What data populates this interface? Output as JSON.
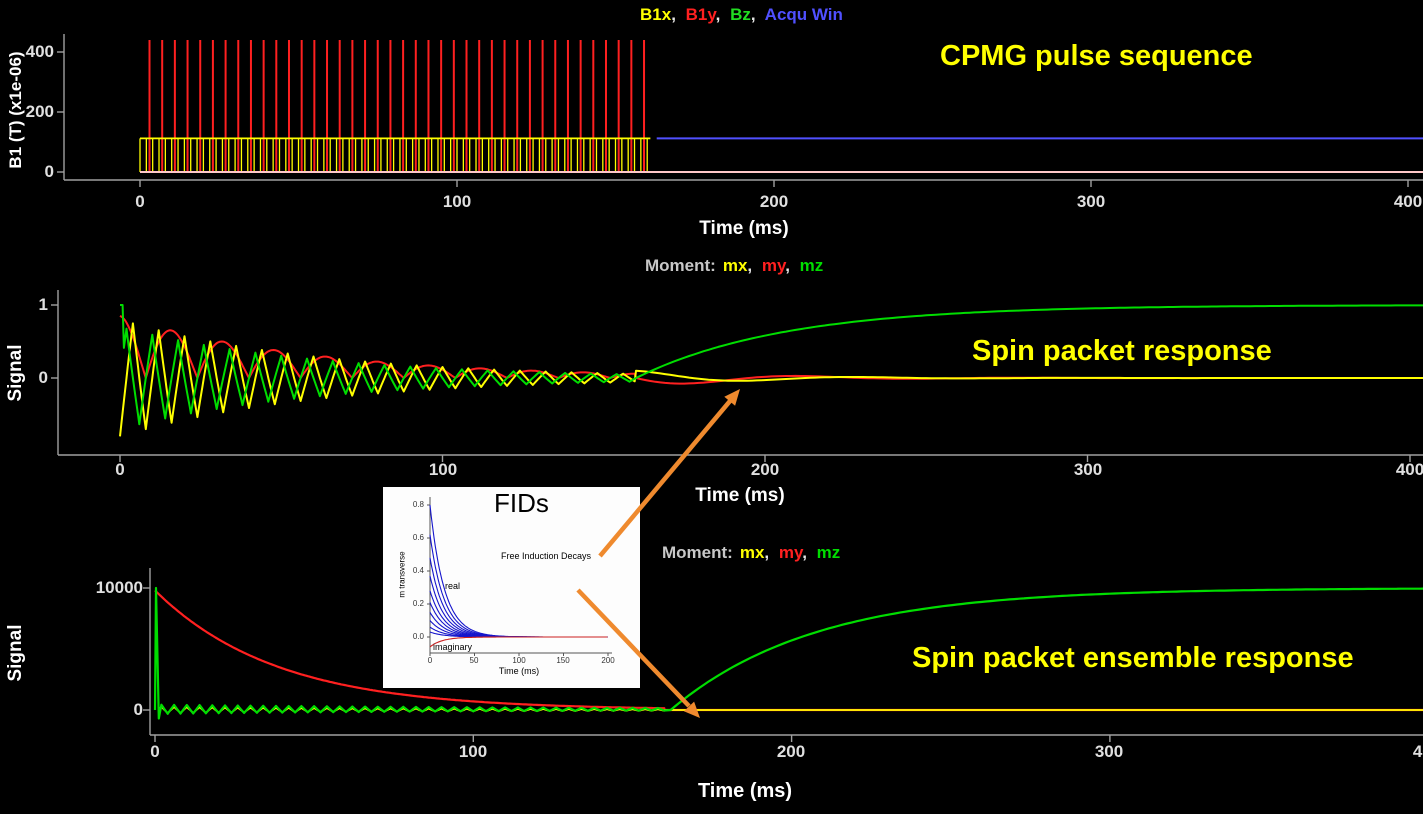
{
  "ui": {
    "comma": ","
  },
  "colors": {
    "background": "#000000",
    "annotation": "#ffff00",
    "axis": "#a0a0a0",
    "tick_text": "#e0e0e0",
    "legend_prefix": "#c8c8c8",
    "arrow": "#ef8a2e",
    "baseline_pink": "#ffc8c8"
  },
  "pulse_plot": {
    "legend": [
      {
        "label": "B1x",
        "color": "#ffff00"
      },
      {
        "label": "B1y",
        "color": "#ff2020"
      },
      {
        "label": "Bz",
        "color": "#22dd22"
      },
      {
        "label": "Acqu Win",
        "color": "#5050ff"
      }
    ],
    "annotation": "CPMG pulse sequence",
    "ylabel": "B1 (T) (x1e-06)",
    "xlabel": "Time (ms)"
  },
  "packet_plot": {
    "legend_prefix": "Moment:",
    "legend": [
      {
        "label": "mx",
        "color": "#ffff00"
      },
      {
        "label": "my",
        "color": "#ff2020"
      },
      {
        "label": "mz",
        "color": "#00dd00"
      }
    ],
    "annotation": "Spin packet response",
    "ylabel": "Signal",
    "xlabel": "Time (ms)"
  },
  "ensemble_plot": {
    "legend_prefix": "Moment:",
    "legend": [
      {
        "label": "mx",
        "color": "#ffff00"
      },
      {
        "label": "my",
        "color": "#ff2020"
      },
      {
        "label": "mz",
        "color": "#00dd00"
      }
    ],
    "annotation": "Spin packet ensemble response",
    "ylabel": "Signal",
    "xlabel": "Time (ms)"
  },
  "inset": {
    "big_label": "FIDs",
    "title": "Free Induction Decays",
    "ylabel": "m transverse",
    "xlabel": "Time (ms)",
    "real_label": "real",
    "imaginary_label": "imaginary",
    "yticks": [
      "0.8",
      "0.6",
      "0.4",
      "0.2",
      "0.0"
    ],
    "xticks": [
      "0",
      "50",
      "100",
      "150",
      "200"
    ]
  },
  "chart_data": [
    {
      "id": "cpmg_pulse_sequence",
      "type": "line",
      "title": "CPMG pulse sequence",
      "xlabel": "Time (ms)",
      "ylabel": "B1 (T) (x1e-06)",
      "xlim": [
        -25,
        405
      ],
      "ylim": [
        -25,
        470
      ],
      "xticks": [
        0,
        100,
        200,
        300,
        400
      ],
      "yticks": [
        0,
        200,
        400
      ],
      "legend": [
        "B1x",
        "B1y",
        "Bz",
        "Acqu Win"
      ],
      "series": [
        {
          "name": "B1y",
          "color": "#ff2020",
          "kind": "pulse_train",
          "first": 3,
          "last": 159,
          "spacing": 4,
          "amplitude": 440
        },
        {
          "name": "B1x",
          "color": "#ffff00",
          "kind": "comb_block",
          "start": 0,
          "end": 161,
          "spacing": 2,
          "amplitude": 112
        },
        {
          "name": "Bz",
          "color": "#22dd22",
          "kind": "hline",
          "from": 0,
          "to": 405,
          "level": 0
        },
        {
          "name": "baseline",
          "color": "#ffc8c8",
          "kind": "hline",
          "from": 0,
          "to": 405,
          "level": 0
        },
        {
          "name": "Acqu Win",
          "color": "#5050ff",
          "kind": "hline",
          "from": 163,
          "to": 405,
          "level": 112
        }
      ]
    },
    {
      "id": "spin_packet_response",
      "type": "line",
      "title": "Spin packet response",
      "xlabel": "Time (ms)",
      "ylabel": "Signal",
      "xlim": [
        -28,
        405
      ],
      "ylim": [
        -1.1,
        1.3
      ],
      "xticks": [
        0,
        100,
        200,
        300,
        400
      ],
      "yticks": [
        0,
        1
      ],
      "legend": [
        "mx",
        "my",
        "mz"
      ],
      "pulse_train_end": 160,
      "series": [
        {
          "name": "my",
          "color": "#ff2020",
          "kind": "cpmg_packet",
          "role": "my",
          "amp": 0.85,
          "env_tau": 60,
          "echo_period": 16,
          "post_amp": 0.12,
          "post_tau": 35,
          "post_period": 70
        },
        {
          "name": "mx",
          "color": "#ffff00",
          "kind": "cpmg_packet",
          "role": "mx",
          "amp": 0.8,
          "env_tau": 60,
          "tooth_period": 8,
          "post_amp": 0.1,
          "post_tau": 35,
          "post_period": 70
        },
        {
          "name": "mz",
          "color": "#00dd00",
          "kind": "cpmg_packet",
          "role": "mz",
          "amp": 0.7,
          "env_tau": 60,
          "tooth_period": 8,
          "t1_tau": 46,
          "recover_to": 1.0
        }
      ]
    },
    {
      "id": "spin_packet_ensemble_response",
      "type": "line",
      "title": "Spin packet ensemble response",
      "xlabel": "Time (ms)",
      "ylabel": "Signal",
      "xlim": [
        -32,
        405
      ],
      "ylim": [
        -2000,
        11500
      ],
      "xticks": [
        0,
        100,
        200,
        300,
        400
      ],
      "yticks": [
        0,
        10000
      ],
      "legend": [
        "mx",
        "my",
        "mz"
      ],
      "pulse_train_end": 160,
      "series": [
        {
          "name": "my",
          "color": "#ff2020",
          "kind": "exp_decay",
          "amplitude": 9800,
          "tau": 38,
          "start": 0,
          "end": 160,
          "after_level": 0
        },
        {
          "name": "mx",
          "color": "#ffff00",
          "kind": "teeth",
          "amp": 260,
          "period": 4,
          "decay_tau": 110,
          "start": 1,
          "end": 160,
          "after_level": 0
        },
        {
          "name": "mz",
          "color": "#00dd00",
          "kind": "spike_teeth_recover",
          "spike_peak": 10000,
          "dip": -700,
          "teeth_amp": 380,
          "teeth_period": 4,
          "teeth_decay_tau": 120,
          "recover_start": 162,
          "recover_tau": 45,
          "recover_to": 10000
        }
      ]
    },
    {
      "id": "fids_inset",
      "type": "line",
      "title": "Free Induction Decays",
      "big_label": "FIDs",
      "xlabel": "Time (ms)",
      "ylabel": "m transverse",
      "xlim": [
        0,
        200
      ],
      "ylim": [
        -0.1,
        0.85
      ],
      "xticks": [
        0,
        50,
        100,
        150,
        200
      ],
      "yticks": [
        0,
        0.2,
        0.4,
        0.6,
        0.8
      ],
      "series": [
        {
          "name": "real",
          "color": "#1515cc",
          "kind": "fid_family",
          "amplitudes": [
            0.8,
            0.62,
            0.48,
            0.37,
            0.28,
            0.21,
            0.15,
            0.1,
            0.06,
            0.03
          ],
          "tau": 16
        },
        {
          "name": "imaginary",
          "color": "#cc2020",
          "kind": "exp_from",
          "start_val": -0.06,
          "tau": 14,
          "end": 200
        }
      ]
    }
  ]
}
